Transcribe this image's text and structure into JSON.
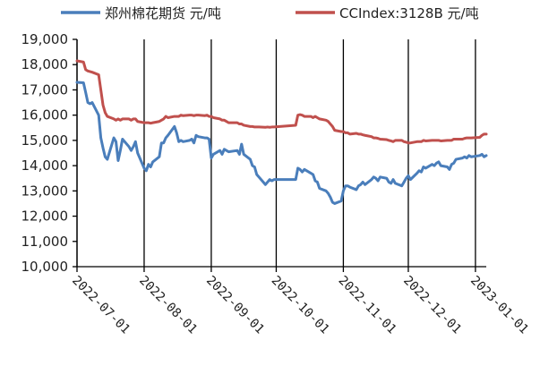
{
  "chart_data": {
    "type": "line",
    "title": "",
    "xlabel": "",
    "ylabel": "",
    "ylim": [
      10000,
      19000
    ],
    "y_ticks": [
      "10,000",
      "11,000",
      "12,000",
      "13,000",
      "14,000",
      "15,000",
      "16,000",
      "17,000",
      "18,000",
      "19,000"
    ],
    "x_ticks": [
      "2022-07-01",
      "2022-08-01",
      "2022-09-01",
      "2022-10-01",
      "2022-11-01",
      "2022-12-01",
      "2023-01-01"
    ],
    "x_range": [
      "2022-07-01",
      "2023-01-06"
    ],
    "grid": "vertical lines at month starts",
    "legend_position": "top",
    "series": [
      {
        "name": "郑州棉花期货 元/吨",
        "color": "#4a7ebb",
        "points": [
          [
            "2022-07-01",
            17300
          ],
          [
            "2022-07-04",
            17280
          ],
          [
            "2022-07-05",
            16900
          ],
          [
            "2022-07-06",
            16500
          ],
          [
            "2022-07-07",
            16450
          ],
          [
            "2022-07-08",
            16500
          ],
          [
            "2022-07-11",
            16000
          ],
          [
            "2022-07-12",
            15100
          ],
          [
            "2022-07-13",
            14700
          ],
          [
            "2022-07-14",
            14350
          ],
          [
            "2022-07-15",
            14250
          ],
          [
            "2022-07-18",
            15100
          ],
          [
            "2022-07-19",
            14950
          ],
          [
            "2022-07-20",
            14200
          ],
          [
            "2022-07-21",
            14600
          ],
          [
            "2022-07-22",
            15050
          ],
          [
            "2022-07-25",
            14750
          ],
          [
            "2022-07-26",
            14600
          ],
          [
            "2022-07-27",
            14750
          ],
          [
            "2022-07-28",
            14950
          ],
          [
            "2022-07-29",
            14500
          ],
          [
            "2022-08-01",
            13900
          ],
          [
            "2022-08-02",
            13800
          ],
          [
            "2022-08-03",
            14050
          ],
          [
            "2022-08-04",
            13950
          ],
          [
            "2022-08-05",
            14150
          ],
          [
            "2022-08-08",
            14350
          ],
          [
            "2022-08-09",
            14900
          ],
          [
            "2022-08-10",
            14900
          ],
          [
            "2022-08-11",
            15100
          ],
          [
            "2022-08-12",
            15200
          ],
          [
            "2022-08-15",
            15550
          ],
          [
            "2022-08-16",
            15300
          ],
          [
            "2022-08-17",
            14950
          ],
          [
            "2022-08-18",
            15000
          ],
          [
            "2022-08-19",
            14950
          ],
          [
            "2022-08-22",
            15000
          ],
          [
            "2022-08-23",
            15050
          ],
          [
            "2022-08-24",
            14900
          ],
          [
            "2022-08-25",
            15200
          ],
          [
            "2022-08-26",
            15150
          ],
          [
            "2022-08-29",
            15100
          ],
          [
            "2022-08-30",
            15100
          ],
          [
            "2022-08-31",
            15050
          ],
          [
            "2022-09-01",
            14300
          ],
          [
            "2022-09-02",
            14450
          ],
          [
            "2022-09-05",
            14600
          ],
          [
            "2022-09-06",
            14450
          ],
          [
            "2022-09-07",
            14650
          ],
          [
            "2022-09-08",
            14600
          ],
          [
            "2022-09-09",
            14550
          ],
          [
            "2022-09-13",
            14600
          ],
          [
            "2022-09-14",
            14450
          ],
          [
            "2022-09-15",
            14850
          ],
          [
            "2022-09-16",
            14450
          ],
          [
            "2022-09-19",
            14250
          ],
          [
            "2022-09-20",
            14000
          ],
          [
            "2022-09-21",
            13950
          ],
          [
            "2022-09-22",
            13650
          ],
          [
            "2022-09-23",
            13550
          ],
          [
            "2022-09-26",
            13250
          ],
          [
            "2022-09-27",
            13350
          ],
          [
            "2022-09-28",
            13450
          ],
          [
            "2022-09-29",
            13400
          ],
          [
            "2022-09-30",
            13450
          ],
          [
            "2022-10-10",
            13450
          ],
          [
            "2022-10-11",
            13900
          ],
          [
            "2022-10-12",
            13850
          ],
          [
            "2022-10-13",
            13750
          ],
          [
            "2022-10-14",
            13850
          ],
          [
            "2022-10-17",
            13700
          ],
          [
            "2022-10-18",
            13650
          ],
          [
            "2022-10-19",
            13400
          ],
          [
            "2022-10-20",
            13350
          ],
          [
            "2022-10-21",
            13100
          ],
          [
            "2022-10-24",
            13000
          ],
          [
            "2022-10-25",
            12900
          ],
          [
            "2022-10-26",
            12750
          ],
          [
            "2022-10-27",
            12550
          ],
          [
            "2022-10-28",
            12500
          ],
          [
            "2022-10-31",
            12600
          ],
          [
            "2022-11-01",
            13000
          ],
          [
            "2022-11-02",
            13200
          ],
          [
            "2022-11-03",
            13200
          ],
          [
            "2022-11-04",
            13150
          ],
          [
            "2022-11-07",
            13050
          ],
          [
            "2022-11-08",
            13200
          ],
          [
            "2022-11-09",
            13250
          ],
          [
            "2022-11-10",
            13350
          ],
          [
            "2022-11-11",
            13250
          ],
          [
            "2022-11-14",
            13450
          ],
          [
            "2022-11-15",
            13550
          ],
          [
            "2022-11-16",
            13500
          ],
          [
            "2022-11-17",
            13400
          ],
          [
            "2022-11-18",
            13550
          ],
          [
            "2022-11-21",
            13500
          ],
          [
            "2022-11-22",
            13350
          ],
          [
            "2022-11-23",
            13300
          ],
          [
            "2022-11-24",
            13450
          ],
          [
            "2022-11-25",
            13300
          ],
          [
            "2022-11-28",
            13200
          ],
          [
            "2022-11-29",
            13350
          ],
          [
            "2022-11-30",
            13500
          ],
          [
            "2022-12-01",
            13600
          ],
          [
            "2022-12-02",
            13450
          ],
          [
            "2022-12-05",
            13700
          ],
          [
            "2022-12-06",
            13800
          ],
          [
            "2022-12-07",
            13750
          ],
          [
            "2022-12-08",
            13950
          ],
          [
            "2022-12-09",
            13900
          ],
          [
            "2022-12-12",
            14050
          ],
          [
            "2022-12-13",
            14000
          ],
          [
            "2022-12-14",
            14100
          ],
          [
            "2022-12-15",
            14150
          ],
          [
            "2022-12-16",
            14000
          ],
          [
            "2022-12-19",
            13950
          ],
          [
            "2022-12-20",
            13850
          ],
          [
            "2022-12-21",
            14050
          ],
          [
            "2022-12-22",
            14100
          ],
          [
            "2022-12-23",
            14250
          ],
          [
            "2022-12-26",
            14300
          ],
          [
            "2022-12-27",
            14350
          ],
          [
            "2022-12-28",
            14300
          ],
          [
            "2022-12-29",
            14400
          ],
          [
            "2022-12-30",
            14350
          ],
          [
            "2023-01-03",
            14400
          ],
          [
            "2023-01-04",
            14450
          ],
          [
            "2023-01-05",
            14350
          ],
          [
            "2023-01-06",
            14400
          ]
        ]
      },
      {
        "name": "CCIndex:3128B 元/吨",
        "color": "#c0504d",
        "points": [
          [
            "2022-07-01",
            18150
          ],
          [
            "2022-07-04",
            18100
          ],
          [
            "2022-07-05",
            17800
          ],
          [
            "2022-07-06",
            17750
          ],
          [
            "2022-07-08",
            17700
          ],
          [
            "2022-07-11",
            17600
          ],
          [
            "2022-07-12",
            17000
          ],
          [
            "2022-07-13",
            16400
          ],
          [
            "2022-07-14",
            16100
          ],
          [
            "2022-07-15",
            15950
          ],
          [
            "2022-07-18",
            15850
          ],
          [
            "2022-07-19",
            15800
          ],
          [
            "2022-07-20",
            15850
          ],
          [
            "2022-07-21",
            15800
          ],
          [
            "2022-07-22",
            15850
          ],
          [
            "2022-07-25",
            15850
          ],
          [
            "2022-07-26",
            15800
          ],
          [
            "2022-07-27",
            15850
          ],
          [
            "2022-07-28",
            15850
          ],
          [
            "2022-07-29",
            15750
          ],
          [
            "2022-08-01",
            15700
          ],
          [
            "2022-08-02",
            15700
          ],
          [
            "2022-08-03",
            15700
          ],
          [
            "2022-08-04",
            15680
          ],
          [
            "2022-08-05",
            15700
          ],
          [
            "2022-08-08",
            15750
          ],
          [
            "2022-08-09",
            15800
          ],
          [
            "2022-08-10",
            15850
          ],
          [
            "2022-08-11",
            15950
          ],
          [
            "2022-08-12",
            15900
          ],
          [
            "2022-08-15",
            15950
          ],
          [
            "2022-08-16",
            15950
          ],
          [
            "2022-08-17",
            15950
          ],
          [
            "2022-08-18",
            16000
          ],
          [
            "2022-08-19",
            15980
          ],
          [
            "2022-08-22",
            16000
          ],
          [
            "2022-08-23",
            16000
          ],
          [
            "2022-08-24",
            15980
          ],
          [
            "2022-08-25",
            16000
          ],
          [
            "2022-08-26",
            16000
          ],
          [
            "2022-08-29",
            15980
          ],
          [
            "2022-08-30",
            16000
          ],
          [
            "2022-08-31",
            15950
          ],
          [
            "2022-09-01",
            15950
          ],
          [
            "2022-09-02",
            15900
          ],
          [
            "2022-09-05",
            15850
          ],
          [
            "2022-09-06",
            15800
          ],
          [
            "2022-09-07",
            15800
          ],
          [
            "2022-09-08",
            15750
          ],
          [
            "2022-09-09",
            15700
          ],
          [
            "2022-09-13",
            15700
          ],
          [
            "2022-09-14",
            15650
          ],
          [
            "2022-09-15",
            15650
          ],
          [
            "2022-09-16",
            15600
          ],
          [
            "2022-09-19",
            15550
          ],
          [
            "2022-09-20",
            15550
          ],
          [
            "2022-09-21",
            15530
          ],
          [
            "2022-09-22",
            15530
          ],
          [
            "2022-09-23",
            15530
          ],
          [
            "2022-09-26",
            15520
          ],
          [
            "2022-09-27",
            15530
          ],
          [
            "2022-09-28",
            15520
          ],
          [
            "2022-09-29",
            15530
          ],
          [
            "2022-09-30",
            15530
          ],
          [
            "2022-10-10",
            15600
          ],
          [
            "2022-10-11",
            16000
          ],
          [
            "2022-10-12",
            16020
          ],
          [
            "2022-10-13",
            16000
          ],
          [
            "2022-10-14",
            15950
          ],
          [
            "2022-10-17",
            15950
          ],
          [
            "2022-10-18",
            15900
          ],
          [
            "2022-10-19",
            15950
          ],
          [
            "2022-10-20",
            15900
          ],
          [
            "2022-10-21",
            15850
          ],
          [
            "2022-10-24",
            15800
          ],
          [
            "2022-10-25",
            15750
          ],
          [
            "2022-10-26",
            15650
          ],
          [
            "2022-10-27",
            15550
          ],
          [
            "2022-10-28",
            15400
          ],
          [
            "2022-10-31",
            15350
          ],
          [
            "2022-11-01",
            15350
          ],
          [
            "2022-11-02",
            15300
          ],
          [
            "2022-11-03",
            15300
          ],
          [
            "2022-11-04",
            15250
          ],
          [
            "2022-11-07",
            15280
          ],
          [
            "2022-11-08",
            15250
          ],
          [
            "2022-11-09",
            15250
          ],
          [
            "2022-11-10",
            15220
          ],
          [
            "2022-11-11",
            15200
          ],
          [
            "2022-11-14",
            15150
          ],
          [
            "2022-11-15",
            15100
          ],
          [
            "2022-11-16",
            15100
          ],
          [
            "2022-11-17",
            15080
          ],
          [
            "2022-11-18",
            15050
          ],
          [
            "2022-11-21",
            15030
          ],
          [
            "2022-11-22",
            15000
          ],
          [
            "2022-11-23",
            14980
          ],
          [
            "2022-11-24",
            14950
          ],
          [
            "2022-11-25",
            15000
          ],
          [
            "2022-11-28",
            15000
          ],
          [
            "2022-11-29",
            14950
          ],
          [
            "2022-11-30",
            14930
          ],
          [
            "2022-12-01",
            14900
          ],
          [
            "2022-12-02",
            14900
          ],
          [
            "2022-12-05",
            14950
          ],
          [
            "2022-12-06",
            14950
          ],
          [
            "2022-12-07",
            14950
          ],
          [
            "2022-12-08",
            15000
          ],
          [
            "2022-12-09",
            14980
          ],
          [
            "2022-12-12",
            15000
          ],
          [
            "2022-12-13",
            15000
          ],
          [
            "2022-12-14",
            15000
          ],
          [
            "2022-12-15",
            15000
          ],
          [
            "2022-12-16",
            14980
          ],
          [
            "2022-12-19",
            15000
          ],
          [
            "2022-12-20",
            15000
          ],
          [
            "2022-12-21",
            15000
          ],
          [
            "2022-12-22",
            15050
          ],
          [
            "2022-12-23",
            15050
          ],
          [
            "2022-12-26",
            15050
          ],
          [
            "2022-12-27",
            15080
          ],
          [
            "2022-12-28",
            15100
          ],
          [
            "2022-12-29",
            15100
          ],
          [
            "2022-12-30",
            15100
          ],
          [
            "2023-01-03",
            15120
          ],
          [
            "2023-01-04",
            15200
          ],
          [
            "2023-01-05",
            15250
          ],
          [
            "2023-01-06",
            15250
          ]
        ]
      }
    ]
  }
}
